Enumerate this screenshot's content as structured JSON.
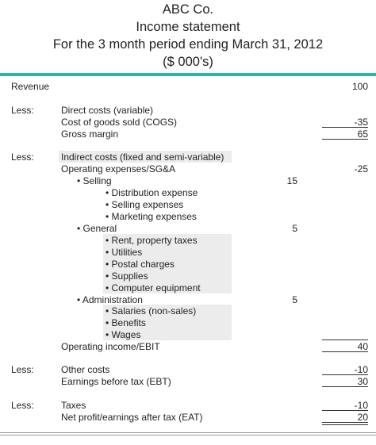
{
  "header": {
    "company": "ABC Co.",
    "title": "Income statement",
    "period": "For the 3 month period ending March 31, 2012",
    "units": "($ 000's)"
  },
  "revenue": {
    "label": "Revenue",
    "value": "100"
  },
  "direct": {
    "less": "Less:",
    "heading": "Direct costs (variable)",
    "cogs_label": "Cost of goods sold (COGS)",
    "cogs_value": "-35",
    "gross_label": "Gross margin",
    "gross_value": "65"
  },
  "indirect": {
    "less": "Less:",
    "heading": "Indirect costs (fixed and semi-variable)",
    "opex_label": "Operating expenses/SG&A",
    "opex_value": "-25",
    "selling": {
      "label": "• Selling",
      "value": "15",
      "items": [
        "• Distribution expense",
        "• Selling expenses",
        "• Marketing expenses"
      ]
    },
    "general": {
      "label": "• General",
      "value": "5",
      "items": [
        "• Rent, property taxes",
        "• Utilities",
        "• Postal charges",
        "• Supplies",
        "• Computer equipment"
      ]
    },
    "administration": {
      "label": "• Administration",
      "value": "5",
      "items": [
        "• Salaries (non-sales)",
        "• Benefits",
        "• Wages"
      ]
    },
    "ebit_label": "Operating income/EBIT",
    "ebit_value": "40"
  },
  "other": {
    "less": "Less:",
    "label": "Other costs",
    "value": "-10",
    "ebt_label": "Earnings before tax (EBT)",
    "ebt_value": "30"
  },
  "taxes": {
    "less": "Less:",
    "label": "Taxes",
    "value": "-10",
    "eat_label": "Net profit/earnings after tax (EAT)",
    "eat_value": "20"
  }
}
